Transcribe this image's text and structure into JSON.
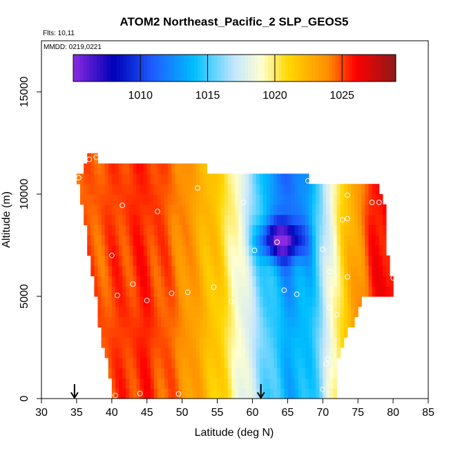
{
  "chart_data": {
    "type": "heatmap",
    "title": "ATOM2 Northeast_Pacific_2 SLP_GEOS5",
    "flights_label": "Flts: 10,11",
    "dates_label": "MMDD: 0219,0221",
    "xlabel": "Latitude (deg N)",
    "ylabel": "Altitude (m)",
    "xlim": [
      30,
      85
    ],
    "ylim": [
      0,
      17500
    ],
    "x_ticks": [
      30,
      35,
      40,
      45,
      50,
      55,
      60,
      65,
      70,
      75,
      80,
      85
    ],
    "x_tick_labels": [
      "30",
      "35",
      "40",
      "45",
      "50",
      "55",
      "60",
      "65",
      "70",
      "75",
      "80",
      "85"
    ],
    "y_ticks": [
      0,
      5000,
      10000,
      15000
    ],
    "y_tick_labels": [
      "0",
      "5000",
      "10000",
      "15000"
    ],
    "colorbar": {
      "range": [
        1005,
        1029
      ],
      "ticks": [
        1010,
        1015,
        1020,
        1025
      ],
      "tick_labels": [
        "1010",
        "1015",
        "1020",
        "1025"
      ],
      "stops": [
        {
          "value": 1005,
          "color": "#8a2be2"
        },
        {
          "value": 1008,
          "color": "#0000b8"
        },
        {
          "value": 1011,
          "color": "#1e5fff"
        },
        {
          "value": 1014,
          "color": "#00bfff"
        },
        {
          "value": 1017,
          "color": "#c4e6ff"
        },
        {
          "value": 1019,
          "color": "#ffffd0"
        },
        {
          "value": 1021,
          "color": "#ffd700"
        },
        {
          "value": 1024,
          "color": "#ff8c00"
        },
        {
          "value": 1026,
          "color": "#ff0000"
        },
        {
          "value": 1029,
          "color": "#8b1a1a"
        }
      ]
    },
    "altitude_bins": [
      250,
      750,
      1250,
      1750,
      2250,
      2750,
      3250,
      3750,
      4250,
      4750,
      5250,
      5750,
      6250,
      6750,
      7250,
      7750,
      8250,
      8750,
      9250,
      9750,
      10250,
      10750,
      11250,
      11750
    ],
    "bin_coverage": [
      {
        "alt": 250,
        "lat_min": 40,
        "lat_max": 72
      },
      {
        "alt": 750,
        "lat_min": 40,
        "lat_max": 72
      },
      {
        "alt": 1250,
        "lat_min": 39.5,
        "lat_max": 72
      },
      {
        "alt": 1750,
        "lat_min": 39.5,
        "lat_max": 72
      },
      {
        "alt": 2250,
        "lat_min": 39,
        "lat_max": 72.5
      },
      {
        "alt": 2750,
        "lat_min": 38.5,
        "lat_max": 73
      },
      {
        "alt": 3250,
        "lat_min": 38.5,
        "lat_max": 73.5
      },
      {
        "alt": 3750,
        "lat_min": 38,
        "lat_max": 74.5
      },
      {
        "alt": 4250,
        "lat_min": 38,
        "lat_max": 75
      },
      {
        "alt": 4750,
        "lat_min": 38,
        "lat_max": 75.5
      },
      {
        "alt": 5250,
        "lat_min": 37.5,
        "lat_max": 80
      },
      {
        "alt": 5750,
        "lat_min": 37.5,
        "lat_max": 80
      },
      {
        "alt": 6250,
        "lat_min": 37,
        "lat_max": 79.5
      },
      {
        "alt": 6750,
        "lat_min": 37,
        "lat_max": 79.5
      },
      {
        "alt": 7250,
        "lat_min": 36.5,
        "lat_max": 79
      },
      {
        "alt": 7750,
        "lat_min": 36.5,
        "lat_max": 79
      },
      {
        "alt": 8250,
        "lat_min": 36.5,
        "lat_max": 79
      },
      {
        "alt": 8750,
        "lat_min": 36,
        "lat_max": 79
      },
      {
        "alt": 9250,
        "lat_min": 36,
        "lat_max": 79
      },
      {
        "alt": 9750,
        "lat_min": 35.5,
        "lat_max": 78.5
      },
      {
        "alt": 10250,
        "lat_min": 35.5,
        "lat_max": 78
      },
      {
        "alt": 10750,
        "lat_min": 35,
        "lat_max": 68
      },
      {
        "alt": 11250,
        "lat_min": 36,
        "lat_max": 53.5
      },
      {
        "alt": 11750,
        "lat_min": 36.5,
        "lat_max": 38
      }
    ],
    "field_profile": [
      {
        "lat": 35,
        "value": 1024.5
      },
      {
        "lat": 40,
        "value": 1025.0
      },
      {
        "lat": 45,
        "value": 1025.5
      },
      {
        "lat": 50,
        "value": 1024.0
      },
      {
        "lat": 55,
        "value": 1021.5
      },
      {
        "lat": 58,
        "value": 1019.0
      },
      {
        "lat": 62,
        "value": 1015.5
      },
      {
        "lat": 65,
        "value": 1013.5
      },
      {
        "lat": 68,
        "value": 1014.0
      },
      {
        "lat": 70,
        "value": 1016.5
      },
      {
        "lat": 72,
        "value": 1020.0
      },
      {
        "lat": 74,
        "value": 1022.5
      },
      {
        "lat": 77,
        "value": 1025.5
      },
      {
        "lat": 80,
        "value": 1026.5
      }
    ],
    "low_center": {
      "lat": 64,
      "alt": 7750,
      "value": 1006
    },
    "flight_points": [
      {
        "lat": 40.5,
        "alt": 150
      },
      {
        "lat": 44,
        "alt": 250
      },
      {
        "lat": 49.5,
        "alt": 230
      },
      {
        "lat": 70,
        "alt": 450
      },
      {
        "lat": 70.5,
        "alt": 1700
      },
      {
        "lat": 70.7,
        "alt": 1950
      },
      {
        "lat": 71,
        "alt": 4450
      },
      {
        "lat": 72,
        "alt": 4100
      },
      {
        "lat": 76,
        "alt": 4800
      },
      {
        "lat": 40.8,
        "alt": 5050
      },
      {
        "lat": 45,
        "alt": 4800
      },
      {
        "lat": 48.5,
        "alt": 5150
      },
      {
        "lat": 50.8,
        "alt": 5200
      },
      {
        "lat": 54.5,
        "alt": 5450
      },
      {
        "lat": 57,
        "alt": 4750
      },
      {
        "lat": 43,
        "alt": 5600
      },
      {
        "lat": 64.5,
        "alt": 5300
      },
      {
        "lat": 66.3,
        "alt": 5100
      },
      {
        "lat": 71,
        "alt": 6200
      },
      {
        "lat": 73.5,
        "alt": 5950
      },
      {
        "lat": 80,
        "alt": 5900
      },
      {
        "lat": 40,
        "alt": 7000
      },
      {
        "lat": 60.3,
        "alt": 7250
      },
      {
        "lat": 63.5,
        "alt": 7650
      },
      {
        "lat": 70,
        "alt": 7300
      },
      {
        "lat": 46.5,
        "alt": 9150
      },
      {
        "lat": 41.5,
        "alt": 9450
      },
      {
        "lat": 58.7,
        "alt": 9600
      },
      {
        "lat": 72.8,
        "alt": 8750
      },
      {
        "lat": 73.5,
        "alt": 8800
      },
      {
        "lat": 77,
        "alt": 9600
      },
      {
        "lat": 78,
        "alt": 9600
      },
      {
        "lat": 52.2,
        "alt": 10300
      },
      {
        "lat": 67.9,
        "alt": 10650
      },
      {
        "lat": 73.5,
        "alt": 9950
      },
      {
        "lat": 36.8,
        "alt": 11700
      },
      {
        "lat": 37.8,
        "alt": 11800
      },
      {
        "lat": 38.8,
        "alt": 11750
      },
      {
        "lat": 35.3,
        "alt": 10800
      }
    ],
    "arrows": [
      {
        "lat": 34.7,
        "alt": 0
      },
      {
        "lat": 61.2,
        "alt": 0
      }
    ],
    "grid": false
  }
}
